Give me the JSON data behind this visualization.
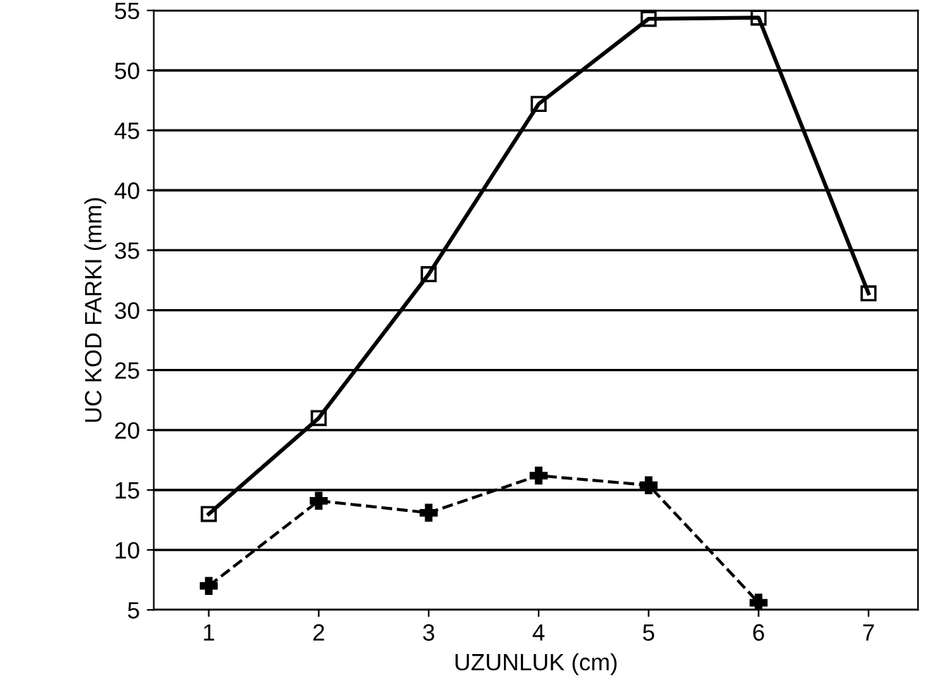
{
  "chart_data": {
    "type": "line",
    "xlabel": "UZUNLUK (cm)",
    "ylabel": "UC KOD FARKI (mm)",
    "x": [
      1,
      2,
      3,
      4,
      5,
      6,
      7
    ],
    "xlim": [
      0.5,
      7.45
    ],
    "xticks": [
      1,
      2,
      3,
      4,
      5,
      6,
      7
    ],
    "ylim": [
      5,
      55
    ],
    "yticks": [
      5,
      10,
      15,
      20,
      25,
      30,
      35,
      40,
      45,
      50,
      55
    ],
    "grid": "y",
    "legend": false,
    "series": [
      {
        "color": "#000000",
        "marker": "square",
        "line_style": "solid",
        "values": [
          13,
          21,
          33,
          47.2,
          54.3,
          54.4,
          31.4
        ]
      },
      {
        "color": "#000000",
        "marker": "cross",
        "line_style": "dashed",
        "values": [
          7,
          14.1,
          13.1,
          16.2,
          15.4,
          5.6,
          null
        ]
      }
    ]
  }
}
